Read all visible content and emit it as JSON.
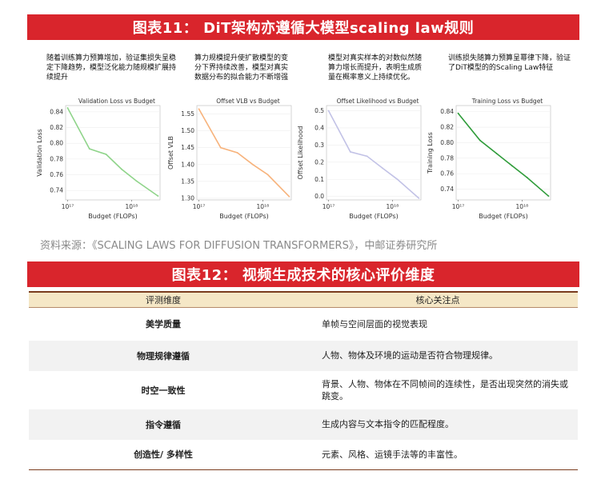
{
  "banner1": "图表11： DiT架构亦遵循大模型scaling law规则",
  "descriptions": [
    "随着训练算力预算增加，验证集损失呈稳定下降趋势，模型泛化能力随规模扩展持续提升",
    "算力规模提升使扩散模型的变分下界持续改善，模型对真实数据分布的拟合能力不断增强",
    "模型对真实样本的对数似然随算力增长而提升，表明生成质量在概率意义上持续优化。",
    "训练损失随算力预算呈幂律下降，验证了DiT模型的的Scaling Law特征"
  ],
  "chart_data": [
    {
      "type": "line",
      "title": "Validation Loss vs Budget",
      "xlabel": "Budget (FLOPs)",
      "ylabel": "Validation Loss",
      "xscale": "log",
      "xticks": [
        "10¹⁷",
        "10¹⁸"
      ],
      "yticks": [
        0.84,
        0.82,
        0.8,
        0.78,
        0.76,
        0.74
      ],
      "ylim": [
        0.728,
        0.848
      ],
      "color": "#8fd48a",
      "x": [
        1e+17,
        2.2e+17,
        4e+17,
        7e+17,
        1.2e+18,
        2.6e+18
      ],
      "y": [
        0.845,
        0.793,
        0.786,
        0.767,
        0.752,
        0.733
      ]
    },
    {
      "type": "line",
      "title": "Offset VLB vs Budget",
      "xlabel": "Budget (FLOPs)",
      "ylabel": "Offset VLB",
      "xscale": "log",
      "xticks": [
        "10¹⁷",
        "10¹⁸"
      ],
      "yticks": [
        1.55,
        1.5,
        1.45,
        1.4,
        1.35,
        1.3
      ],
      "ylim": [
        1.295,
        1.575
      ],
      "color": "#f7b37c",
      "x": [
        1e+17,
        2.2e+17,
        4e+17,
        7e+17,
        1.2e+18,
        2.6e+18
      ],
      "y": [
        1.565,
        1.45,
        1.435,
        1.4,
        1.37,
        1.305
      ]
    },
    {
      "type": "line",
      "title": "Offset Likelihood vs Budget",
      "xlabel": "Budget (FLOPs)",
      "ylabel": "Offset Likelihood",
      "xscale": "log",
      "xticks": [
        "10¹⁷",
        "10¹⁸"
      ],
      "yticks": [
        0.5,
        0.4,
        0.3,
        0.2,
        0.1,
        0.0
      ],
      "ylim": [
        -0.02,
        0.53
      ],
      "color": "#c2c2e6",
      "x": [
        1e+17,
        2.2e+17,
        4e+17,
        7e+17,
        1.2e+18,
        2.6e+18
      ],
      "y": [
        0.5,
        0.26,
        0.235,
        0.165,
        0.1,
        -0.01
      ]
    },
    {
      "type": "line",
      "title": "Training Loss vs Budget",
      "xlabel": "Budget (FLOPs)",
      "ylabel": "Training Loss",
      "xscale": "log",
      "xticks": [
        "10¹⁷",
        "10¹⁸"
      ],
      "yticks": [
        0.84,
        0.82,
        0.8,
        0.78,
        0.76,
        0.74
      ],
      "ylim": [
        0.726,
        0.848
      ],
      "color": "#2f9c3a",
      "x": [
        1e+17,
        2.2e+17,
        4e+17,
        7e+17,
        1.2e+18,
        2.6e+18
      ],
      "y": [
        0.838,
        0.803,
        0.786,
        0.77,
        0.755,
        0.731
      ]
    }
  ],
  "source": "资料来源：《SCALING LAWS FOR DIFFUSION TRANSFORMERS》，中邮证券研究所",
  "banner2": "图表12： 视频生成技术的核心评价维度",
  "table": {
    "headers": [
      "评测维度",
      "核心关注点"
    ],
    "rows": [
      [
        "美学质量",
        "单帧与空间层面的视觉表现"
      ],
      [
        "物理规律遵循",
        "人物、物体及环境的运动是否符合物理规律。"
      ],
      [
        "时空一致性",
        "背景、人物、物体在不同帧间的连续性，是否出现突然的消失或跳变。"
      ],
      [
        "指令遵循",
        "生成内容与文本指令的匹配程度。"
      ],
      [
        "创造性/ 多样性",
        "元素、风格、运镜手法等的丰富性。"
      ]
    ]
  }
}
